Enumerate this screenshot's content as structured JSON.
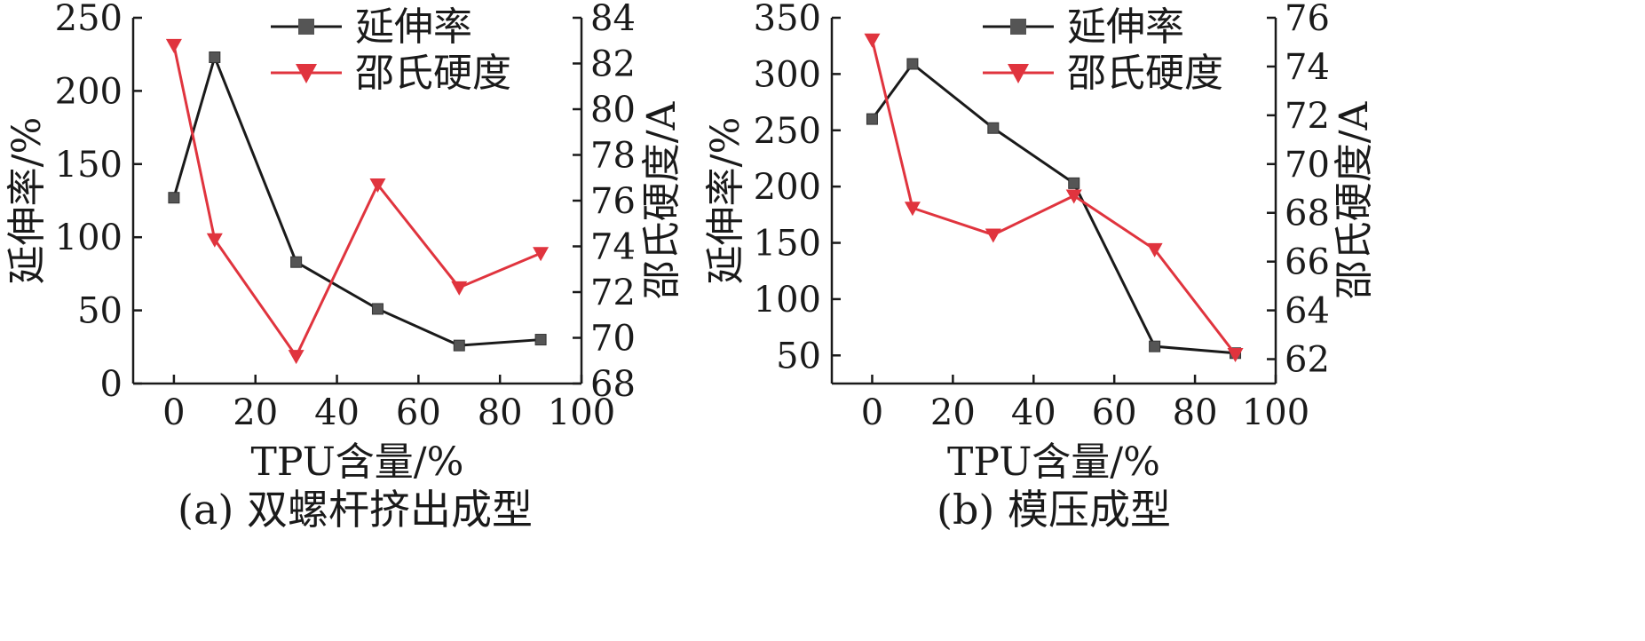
{
  "chart_data": [
    {
      "type": "line",
      "panel": "a",
      "title": "(a) 双螺杆挤出成型",
      "xlabel": "TPU含量/%",
      "ylabel_left": "延伸率/%",
      "ylabel_right": "邵氏硬度/A",
      "xlim": [
        -10,
        100
      ],
      "xticks": [
        0,
        20,
        40,
        60,
        80,
        100
      ],
      "ylim_left": [
        0,
        250
      ],
      "yticks_left": [
        0,
        50,
        100,
        150,
        200,
        250
      ],
      "ylim_right": [
        68,
        84
      ],
      "yticks_right": [
        68,
        70,
        72,
        74,
        76,
        78,
        80,
        82,
        84
      ],
      "legend_position": "top-center",
      "series": [
        {
          "name": "延伸率",
          "axis": "left",
          "color": "#1a1a1a",
          "marker": "square",
          "x": [
            0,
            10,
            30,
            50,
            70,
            90
          ],
          "y": [
            127,
            223,
            83,
            51,
            26,
            30
          ]
        },
        {
          "name": "邵氏硬度",
          "axis": "right",
          "color": "#e0343e",
          "marker": "triangle-down",
          "x": [
            0,
            10,
            30,
            50,
            70,
            90
          ],
          "y": [
            82.8,
            74.3,
            69.2,
            76.7,
            72.2,
            73.7
          ]
        }
      ]
    },
    {
      "type": "line",
      "panel": "b",
      "title": "(b) 模压成型",
      "xlabel": "TPU含量/%",
      "ylabel_left": "延伸率/%",
      "ylabel_right": "邵氏硬度/A",
      "xlim": [
        -10,
        100
      ],
      "xticks": [
        0,
        20,
        40,
        60,
        80,
        100
      ],
      "ylim_left": [
        25,
        350
      ],
      "yticks_left": [
        50,
        100,
        150,
        200,
        250,
        300,
        350
      ],
      "ylim_right": [
        61,
        76
      ],
      "yticks_right": [
        62,
        64,
        66,
        68,
        70,
        72,
        74,
        76
      ],
      "legend_position": "top-center",
      "series": [
        {
          "name": "延伸率",
          "axis": "left",
          "color": "#1a1a1a",
          "marker": "square",
          "x": [
            0,
            10,
            30,
            50,
            70,
            90
          ],
          "y": [
            260,
            309,
            252,
            203,
            58,
            52
          ]
        },
        {
          "name": "邵氏硬度",
          "axis": "right",
          "color": "#e0343e",
          "marker": "triangle-down",
          "x": [
            0,
            10,
            30,
            50,
            70,
            90
          ],
          "y": [
            75.1,
            68.2,
            67.1,
            68.7,
            66.5,
            62.2
          ]
        }
      ]
    }
  ]
}
